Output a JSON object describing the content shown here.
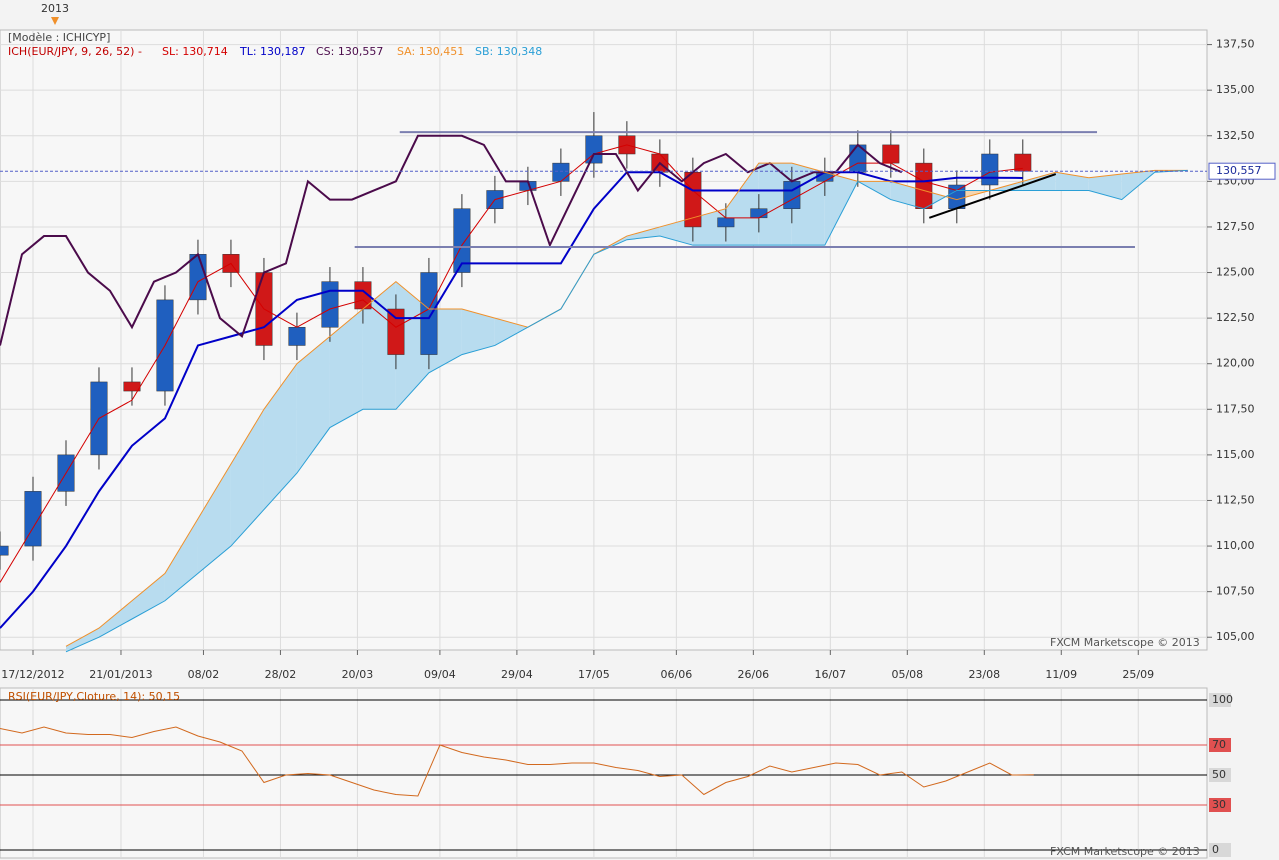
{
  "chart_data": [
    {
      "type": "candlestick",
      "model_label": "[Modèle : ICHICYP]",
      "indicator_label": "ICH(EUR/JPY, 9, 26, 52) -",
      "year_marker": {
        "label": "2013",
        "x": 10
      },
      "watermark": "FXCM Marketscope © 2013",
      "xlim": [
        0,
        219.5
      ],
      "ylim": [
        104.3,
        138.3
      ],
      "xticks": [
        {
          "value": 6,
          "label": "17/12/2012"
        },
        {
          "value": 22,
          "label": "21/01/2013"
        },
        {
          "value": 37,
          "label": "08/02"
        },
        {
          "value": 51,
          "label": "28/02"
        },
        {
          "value": 65,
          "label": "20/03"
        },
        {
          "value": 80,
          "label": "09/04"
        },
        {
          "value": 94,
          "label": "29/04"
        },
        {
          "value": 108,
          "label": "17/05"
        },
        {
          "value": 123,
          "label": "06/06"
        },
        {
          "value": 137,
          "label": "26/06"
        },
        {
          "value": 151,
          "label": "16/07"
        },
        {
          "value": 165,
          "label": "05/08"
        },
        {
          "value": 179,
          "label": "23/08"
        },
        {
          "value": 193,
          "label": "11/09"
        },
        {
          "value": 207,
          "label": "25/09"
        }
      ],
      "yticks": [
        {
          "value": 105,
          "label": "105,00"
        },
        {
          "value": 107.5,
          "label": "107,50"
        },
        {
          "value": 110,
          "label": "110,00"
        },
        {
          "value": 112.5,
          "label": "112,50"
        },
        {
          "value": 115,
          "label": "115,00"
        },
        {
          "value": 117.5,
          "label": "117,50"
        },
        {
          "value": 120,
          "label": "120,00"
        },
        {
          "value": 122.5,
          "label": "122,50"
        },
        {
          "value": 125,
          "label": "125,00"
        },
        {
          "value": 127.5,
          "label": "127,50"
        },
        {
          "value": 130,
          "label": "130,00"
        },
        {
          "value": 132.5,
          "label": "132,50"
        },
        {
          "value": 135,
          "label": "135,00"
        },
        {
          "value": 137.5,
          "label": "137,50"
        }
      ],
      "grid": true,
      "up_color": "#1f5fbf",
      "down_color": "#d01818",
      "candles": {
        "x": [
          0,
          6,
          12,
          18,
          24,
          30,
          36,
          42,
          48,
          54,
          60,
          66,
          72,
          78,
          84,
          90,
          96,
          102,
          108,
          114,
          120,
          126,
          132,
          138,
          144,
          150,
          156,
          162,
          168,
          174,
          180,
          186
        ],
        "open": [
          109.5,
          110,
          113,
          115,
          119,
          118.5,
          123.5,
          126,
          125,
          121,
          122,
          124.5,
          123,
          120.5,
          125,
          128.5,
          129.5,
          130,
          131,
          132.5,
          131.5,
          130.5,
          127.5,
          128,
          128.5,
          130,
          130.5,
          132,
          131,
          128.5,
          129.8,
          131.5
        ],
        "high": [
          110.8,
          113.8,
          115.8,
          119.8,
          119.8,
          124.3,
          126.8,
          126.8,
          125.8,
          122.8,
          125.3,
          125.3,
          123.8,
          125.8,
          129.3,
          130.3,
          130.8,
          131.8,
          133.8,
          133.3,
          132.3,
          131.3,
          128.8,
          129.3,
          130.8,
          131.3,
          132.8,
          132.8,
          131.8,
          130.6,
          132.3,
          132.3
        ],
        "low": [
          108.7,
          109.2,
          112.2,
          114.2,
          117.7,
          117.7,
          122.7,
          124.2,
          120.2,
          120.2,
          121.2,
          122.2,
          119.7,
          119.7,
          124.2,
          127.7,
          128.7,
          129.2,
          130.2,
          130.7,
          129.7,
          126.7,
          126.7,
          127.2,
          127.7,
          129.2,
          129.7,
          130.2,
          127.7,
          127.7,
          129,
          129.8
        ],
        "close": [
          110,
          113,
          115,
          119,
          118.5,
          123.5,
          126,
          125,
          121,
          122,
          124.5,
          123,
          120.5,
          125,
          128.5,
          129.5,
          130,
          131,
          132.5,
          131.5,
          130.5,
          127.5,
          128,
          128.5,
          130,
          130.5,
          132,
          131,
          128.5,
          129.8,
          131.5,
          130.557
        ]
      },
      "series": [
        {
          "name": "SL: 130,714",
          "color": "#d40000",
          "x": [
            0,
            6,
            12,
            18,
            24,
            30,
            36,
            42,
            48,
            54,
            60,
            66,
            72,
            78,
            84,
            90,
            96,
            102,
            108,
            114,
            120,
            126,
            132,
            138,
            144,
            150,
            156,
            162,
            168,
            174,
            180,
            186
          ],
          "values": [
            108,
            111,
            114,
            117,
            118,
            121,
            124.5,
            125.5,
            123,
            122,
            123,
            123.5,
            122,
            123,
            126.5,
            129,
            129.5,
            130,
            131.5,
            132,
            131.5,
            129.5,
            128,
            128,
            129,
            130,
            131,
            131,
            130,
            129.5,
            130.5,
            130.714
          ]
        },
        {
          "name": "TL: 130,187",
          "color": "#0000c8",
          "x": [
            0,
            6,
            12,
            18,
            24,
            30,
            36,
            42,
            48,
            54,
            60,
            66,
            72,
            78,
            84,
            90,
            96,
            102,
            108,
            114,
            120,
            126,
            132,
            138,
            144,
            150,
            156,
            162,
            168,
            174,
            180,
            186
          ],
          "values": [
            105.5,
            107.5,
            110,
            113,
            115.5,
            117,
            121,
            121.5,
            122,
            123.5,
            124,
            124,
            122.5,
            122.5,
            125.5,
            125.5,
            125.5,
            125.5,
            128.5,
            130.5,
            130.5,
            129.5,
            129.5,
            129.5,
            129.5,
            130.5,
            130.5,
            130,
            130,
            130.2,
            130.2,
            130.187
          ]
        },
        {
          "name": "CS: 130,557",
          "color": "#4b0b4b",
          "x": [
            0,
            4,
            8,
            12,
            16,
            20,
            24,
            28,
            32,
            36,
            40,
            44,
            48,
            52,
            56,
            60,
            64,
            68,
            72,
            76,
            80,
            84,
            88,
            92,
            96,
            100,
            104,
            108,
            112,
            116,
            120,
            124,
            128,
            132,
            136,
            140,
            144,
            148,
            152,
            156,
            160,
            164
          ],
          "values": [
            121,
            126,
            127,
            127,
            125,
            124,
            122,
            124.5,
            125,
            126,
            122.5,
            121.5,
            125,
            125.5,
            130,
            129,
            129,
            129.5,
            130,
            132.5,
            132.5,
            132.5,
            132,
            130,
            130,
            126.5,
            129,
            131.5,
            131.5,
            129.5,
            131,
            130,
            131,
            131.5,
            130.5,
            131,
            130,
            130.5,
            130.5,
            132,
            131,
            130.5
          ]
        },
        {
          "name": "SA: 130,451",
          "color": "#f0902a",
          "x": [
            12,
            18,
            24,
            30,
            36,
            42,
            48,
            54,
            60,
            66,
            72,
            78,
            84,
            90,
            96,
            102,
            108,
            114,
            120,
            126,
            132,
            138,
            144,
            150,
            156,
            162,
            168,
            174,
            180,
            186,
            192,
            198,
            204,
            210,
            216
          ],
          "values": [
            104.5,
            105.5,
            107,
            108.5,
            111.5,
            114.5,
            117.5,
            120,
            121.5,
            123,
            124.5,
            123,
            123,
            122.5,
            122,
            123,
            126,
            127,
            127.5,
            128,
            128.5,
            131,
            131,
            130.5,
            130,
            130,
            129.5,
            129,
            129.5,
            130,
            130.5,
            130.2,
            130.4,
            130.6,
            130.6
          ]
        },
        {
          "name": "SB: 130,348",
          "color": "#2a9fd6",
          "x": [
            12,
            18,
            24,
            30,
            36,
            42,
            48,
            54,
            60,
            66,
            72,
            78,
            84,
            90,
            96,
            102,
            108,
            114,
            120,
            126,
            132,
            138,
            144,
            150,
            156,
            162,
            168,
            174,
            180,
            186,
            192,
            198,
            204,
            210,
            216
          ],
          "values": [
            104.2,
            105,
            106,
            107,
            108.5,
            110,
            112,
            114,
            116.5,
            117.5,
            117.5,
            119.5,
            120.5,
            121,
            122,
            123,
            126,
            126.8,
            127,
            126.5,
            126.5,
            126.5,
            126.5,
            126.5,
            130,
            129,
            128.5,
            129.5,
            129.5,
            129.5,
            129.5,
            129.5,
            129,
            130.5,
            130.6
          ]
        }
      ],
      "cloud_colors": [
        "#b8dcef",
        "#f5d5b0"
      ],
      "last_price": {
        "value": 130.557,
        "label": "130,557"
      },
      "drawings": [
        {
          "x": [
            72.7,
            199.5
          ],
          "y": [
            132.7,
            132.7
          ],
          "color": "#7b7fb0"
        },
        {
          "x": [
            64.5,
            206.4
          ],
          "y": [
            126.4,
            126.4
          ],
          "color": "#7b7fb0"
        },
        {
          "x": [
            169,
            192
          ],
          "y": [
            128,
            130.4
          ],
          "color": "#000000"
        }
      ]
    },
    {
      "type": "line",
      "label": "RSI(EUR/JPY,Cloture, 14): 50,15",
      "watermark": "FXCM Marketscope © 2013",
      "color": "#d2691e",
      "xlim": [
        0,
        219.5
      ],
      "ylim": [
        0,
        100
      ],
      "yticks": [
        0,
        30,
        50,
        70,
        100
      ],
      "tick_colors": [
        "#000000",
        "#e05050",
        "#000000",
        "#e05050",
        "#000000"
      ],
      "x": [
        0,
        4,
        8,
        12,
        16,
        20,
        24,
        28,
        32,
        36,
        40,
        44,
        48,
        52,
        56,
        60,
        64,
        68,
        72,
        76,
        80,
        84,
        88,
        92,
        96,
        100,
        104,
        108,
        112,
        116,
        120,
        124,
        128,
        132,
        136,
        140,
        144,
        148,
        152,
        156,
        160,
        164,
        168,
        172,
        176,
        180,
        184,
        188
      ],
      "values": [
        81,
        78,
        82,
        78,
        77,
        77,
        75,
        79,
        82,
        76,
        72,
        66,
        45,
        50,
        51,
        50,
        45,
        40,
        37,
        36,
        70,
        65,
        62,
        60,
        57,
        57,
        58,
        58,
        55,
        53,
        49,
        50,
        37,
        45,
        49,
        56,
        52,
        55,
        58,
        57,
        50,
        52,
        42,
        46,
        52,
        58,
        50,
        50.15
      ]
    }
  ]
}
